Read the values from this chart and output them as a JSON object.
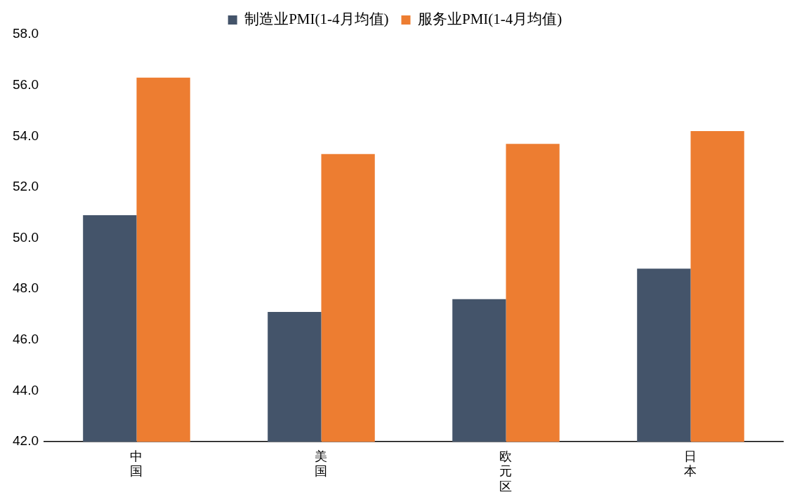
{
  "chart_data": {
    "type": "bar",
    "categories": [
      "中国",
      "美国",
      "欧元区",
      "日本"
    ],
    "series": [
      {
        "name": "制造业PMI(1-4月均值)",
        "color": "#44546a",
        "values": [
          50.9,
          47.1,
          47.6,
          48.8
        ]
      },
      {
        "name": "服务业PMI(1-4月均值)",
        "color": "#ed7d31",
        "values": [
          56.3,
          53.3,
          53.7,
          54.2
        ]
      }
    ],
    "ylim": [
      42,
      58
    ],
    "yticks": [
      {
        "value": 42,
        "label": "42.0"
      },
      {
        "value": 44,
        "label": "44.0"
      },
      {
        "value": 46,
        "label": "46.0"
      },
      {
        "value": 48,
        "label": "48.0"
      },
      {
        "value": 50,
        "label": "50.0"
      },
      {
        "value": 52,
        "label": "52.0"
      },
      {
        "value": 54,
        "label": "54.0"
      },
      {
        "value": 56,
        "label": "56.0"
      },
      {
        "value": 58,
        "label": "58.0"
      }
    ],
    "grid": false,
    "legend": "top"
  }
}
